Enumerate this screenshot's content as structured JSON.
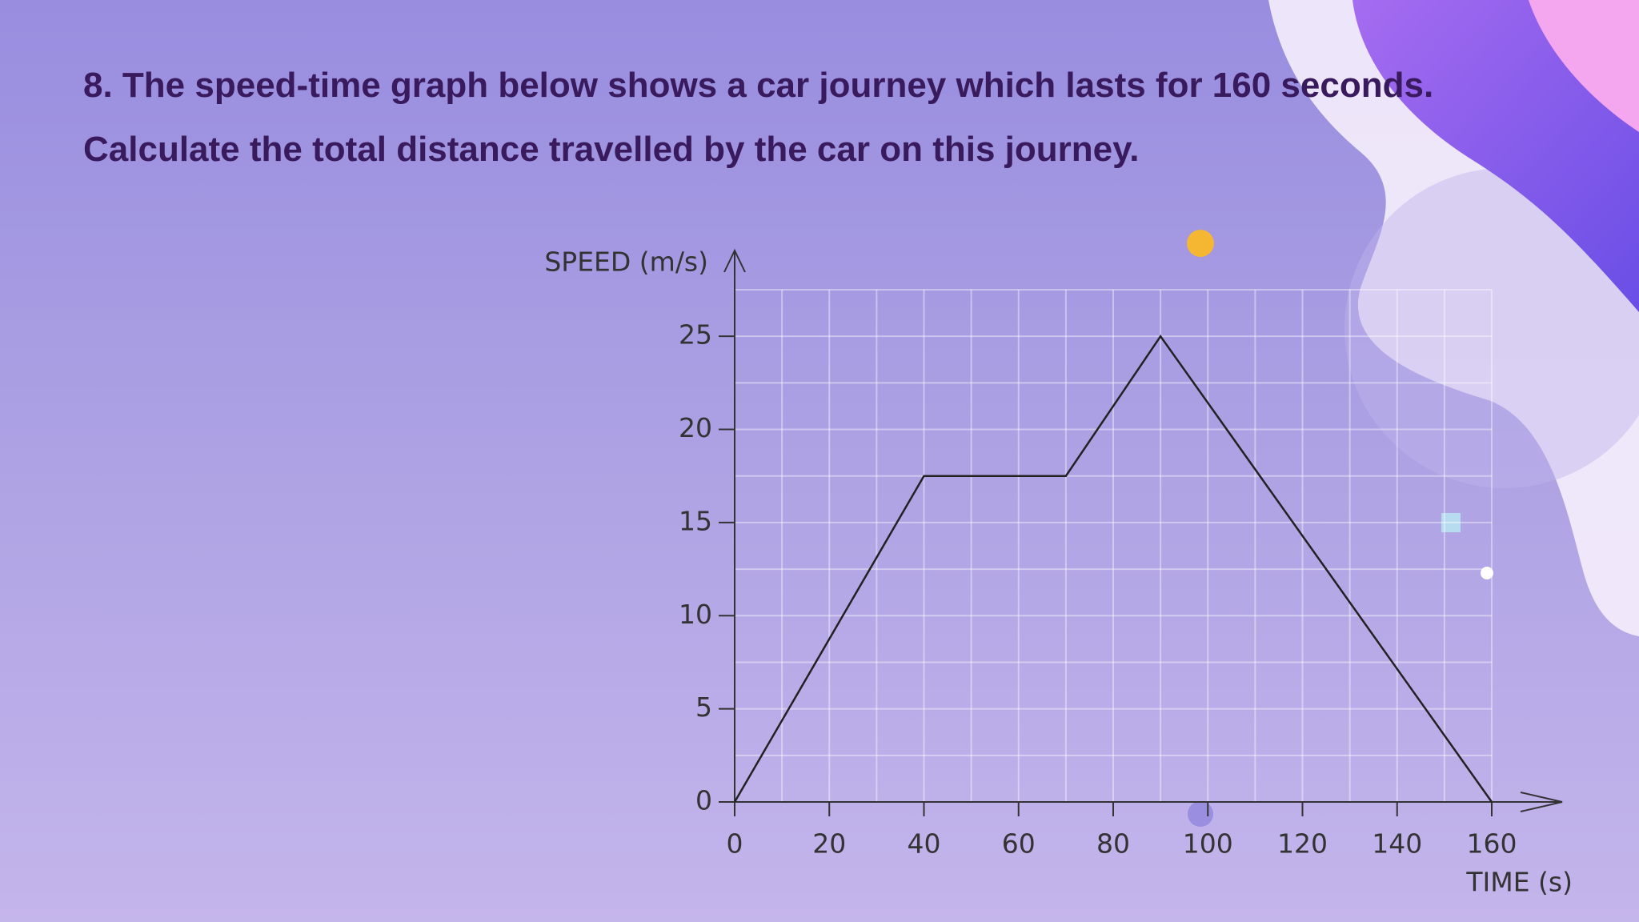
{
  "question": [
    "8. The speed-time graph below shows a car journey which lasts for 160 seconds.",
    "Calculate the total distance travelled by the car on this journey."
  ],
  "chart_data": {
    "type": "line",
    "xlabel": "TIME (s)",
    "ylabel": "SPEED (m/s)",
    "x": [
      0,
      40,
      70,
      90,
      160
    ],
    "values": [
      0,
      17.5,
      17.5,
      25,
      0
    ],
    "color": "#222222",
    "xlim": [
      0,
      160
    ],
    "ylim": [
      0,
      27.5
    ],
    "xticks": [
      0,
      20,
      40,
      60,
      80,
      100,
      120,
      140,
      160
    ],
    "yticks": [
      0,
      5,
      10,
      15,
      20,
      25
    ],
    "xminorticks": [
      10,
      30,
      50,
      70,
      90,
      110,
      130,
      150
    ],
    "yminorticks": [
      2.5,
      7.5,
      12.5,
      17.5,
      22.5,
      27.5
    ],
    "grid": true
  }
}
